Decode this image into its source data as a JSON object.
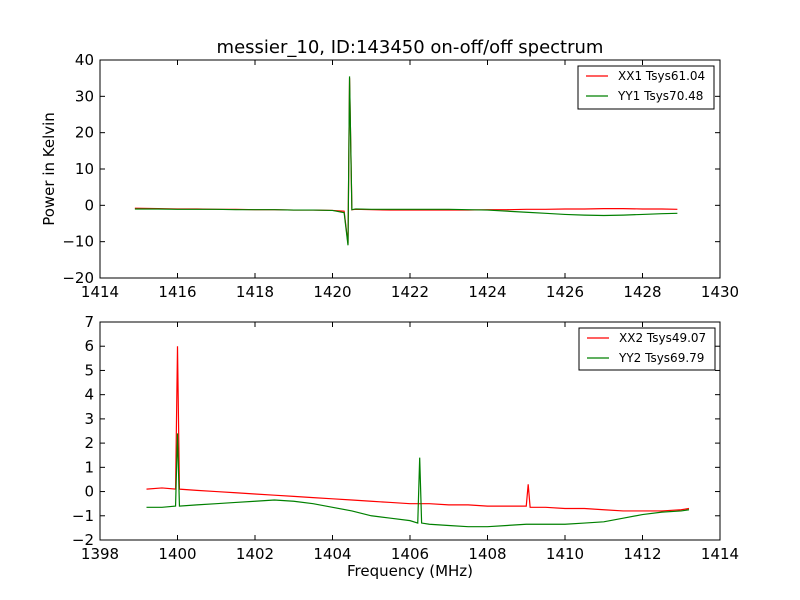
{
  "chart_data": [
    {
      "type": "line",
      "title": "messier_10, ID:143450 on-off/off spectrum",
      "xlabel": "",
      "ylabel": "Power in Kelvin",
      "xlim": [
        1414,
        1430
      ],
      "ylim": [
        -20,
        40
      ],
      "xticks": [
        "1414",
        "1416",
        "1418",
        "1420",
        "1422",
        "1424",
        "1426",
        "1428",
        "1430"
      ],
      "yticks": [
        "−20",
        "−10",
        "0",
        "10",
        "20",
        "30",
        "40"
      ],
      "legend_position": "top-right",
      "series": [
        {
          "name": "XX1 Tsys61.04",
          "color": "#ff0000",
          "x": [
            1414.9,
            1415.5,
            1416.0,
            1416.5,
            1417.0,
            1417.5,
            1418.0,
            1418.5,
            1419.0,
            1419.5,
            1420.0,
            1420.3,
            1420.4,
            1420.44,
            1420.5,
            1420.6,
            1421.0,
            1421.5,
            1422.0,
            1422.5,
            1423.0,
            1423.5,
            1424.0,
            1424.5,
            1425.0,
            1425.5,
            1426.0,
            1426.5,
            1427.0,
            1427.5,
            1428.0,
            1428.5,
            1428.9
          ],
          "values": [
            -0.8,
            -0.9,
            -1.0,
            -1.0,
            -1.1,
            -1.1,
            -1.2,
            -1.2,
            -1.3,
            -1.3,
            -1.4,
            -1.6,
            -10.5,
            35.0,
            -1.2,
            -1.1,
            -1.2,
            -1.3,
            -1.3,
            -1.3,
            -1.3,
            -1.3,
            -1.2,
            -1.2,
            -1.1,
            -1.1,
            -1.0,
            -1.0,
            -0.9,
            -0.9,
            -1.0,
            -1.0,
            -1.1
          ]
        },
        {
          "name": "YY1 Tsys70.48",
          "color": "#008000",
          "x": [
            1414.9,
            1415.5,
            1416.0,
            1416.5,
            1417.0,
            1417.5,
            1418.0,
            1418.5,
            1419.0,
            1419.5,
            1420.0,
            1420.3,
            1420.4,
            1420.44,
            1420.5,
            1420.6,
            1421.0,
            1421.5,
            1422.0,
            1422.5,
            1423.0,
            1423.5,
            1424.0,
            1424.5,
            1425.0,
            1425.5,
            1426.0,
            1426.5,
            1427.0,
            1427.5,
            1428.0,
            1428.5,
            1428.9
          ],
          "values": [
            -1.0,
            -1.0,
            -1.1,
            -1.1,
            -1.1,
            -1.2,
            -1.2,
            -1.2,
            -1.3,
            -1.3,
            -1.4,
            -2.0,
            -11.0,
            35.5,
            -1.2,
            -1.0,
            -1.1,
            -1.1,
            -1.1,
            -1.1,
            -1.1,
            -1.2,
            -1.3,
            -1.6,
            -1.9,
            -2.2,
            -2.5,
            -2.7,
            -2.8,
            -2.7,
            -2.5,
            -2.3,
            -2.2
          ]
        }
      ]
    },
    {
      "type": "line",
      "title": "",
      "xlabel": "Frequency (MHz)",
      "ylabel": "",
      "xlim": [
        1398,
        1414
      ],
      "ylim": [
        -2,
        7
      ],
      "xticks": [
        "1398",
        "1400",
        "1402",
        "1404",
        "1406",
        "1408",
        "1410",
        "1412",
        "1414"
      ],
      "yticks": [
        "−2",
        "−1",
        "0",
        "1",
        "2",
        "3",
        "4",
        "5",
        "6",
        "7"
      ],
      "legend_position": "top-right",
      "series": [
        {
          "name": "XX2 Tsys49.07",
          "color": "#ff0000",
          "x": [
            1399.2,
            1399.6,
            1399.95,
            1400.0,
            1400.05,
            1400.5,
            1401.0,
            1401.5,
            1402.0,
            1402.5,
            1403.0,
            1403.5,
            1404.0,
            1404.5,
            1405.0,
            1405.5,
            1406.0,
            1406.5,
            1407.0,
            1407.5,
            1408.0,
            1408.5,
            1409.0,
            1409.05,
            1409.1,
            1409.5,
            1410.0,
            1410.5,
            1411.0,
            1411.5,
            1412.0,
            1412.5,
            1413.0,
            1413.2
          ],
          "values": [
            0.1,
            0.15,
            0.1,
            6.0,
            0.1,
            0.05,
            0.0,
            -0.05,
            -0.1,
            -0.15,
            -0.2,
            -0.25,
            -0.3,
            -0.35,
            -0.4,
            -0.45,
            -0.5,
            -0.5,
            -0.55,
            -0.55,
            -0.6,
            -0.6,
            -0.6,
            0.3,
            -0.65,
            -0.65,
            -0.7,
            -0.7,
            -0.75,
            -0.8,
            -0.8,
            -0.8,
            -0.75,
            -0.7
          ]
        },
        {
          "name": "YY2 Tsys69.79",
          "color": "#008000",
          "x": [
            1399.2,
            1399.6,
            1399.95,
            1400.0,
            1400.05,
            1400.5,
            1401.0,
            1401.5,
            1402.0,
            1402.5,
            1403.0,
            1403.5,
            1404.0,
            1404.5,
            1405.0,
            1405.5,
            1406.0,
            1406.2,
            1406.25,
            1406.3,
            1406.5,
            1407.0,
            1407.5,
            1408.0,
            1408.5,
            1409.0,
            1409.5,
            1410.0,
            1410.5,
            1411.0,
            1411.5,
            1412.0,
            1412.5,
            1413.0,
            1413.2
          ],
          "values": [
            -0.65,
            -0.65,
            -0.6,
            2.4,
            -0.6,
            -0.55,
            -0.5,
            -0.45,
            -0.4,
            -0.35,
            -0.4,
            -0.5,
            -0.65,
            -0.8,
            -1.0,
            -1.1,
            -1.2,
            -1.3,
            1.4,
            -1.3,
            -1.35,
            -1.4,
            -1.45,
            -1.45,
            -1.4,
            -1.35,
            -1.35,
            -1.35,
            -1.3,
            -1.25,
            -1.1,
            -0.95,
            -0.85,
            -0.8,
            -0.75
          ]
        }
      ]
    }
  ]
}
